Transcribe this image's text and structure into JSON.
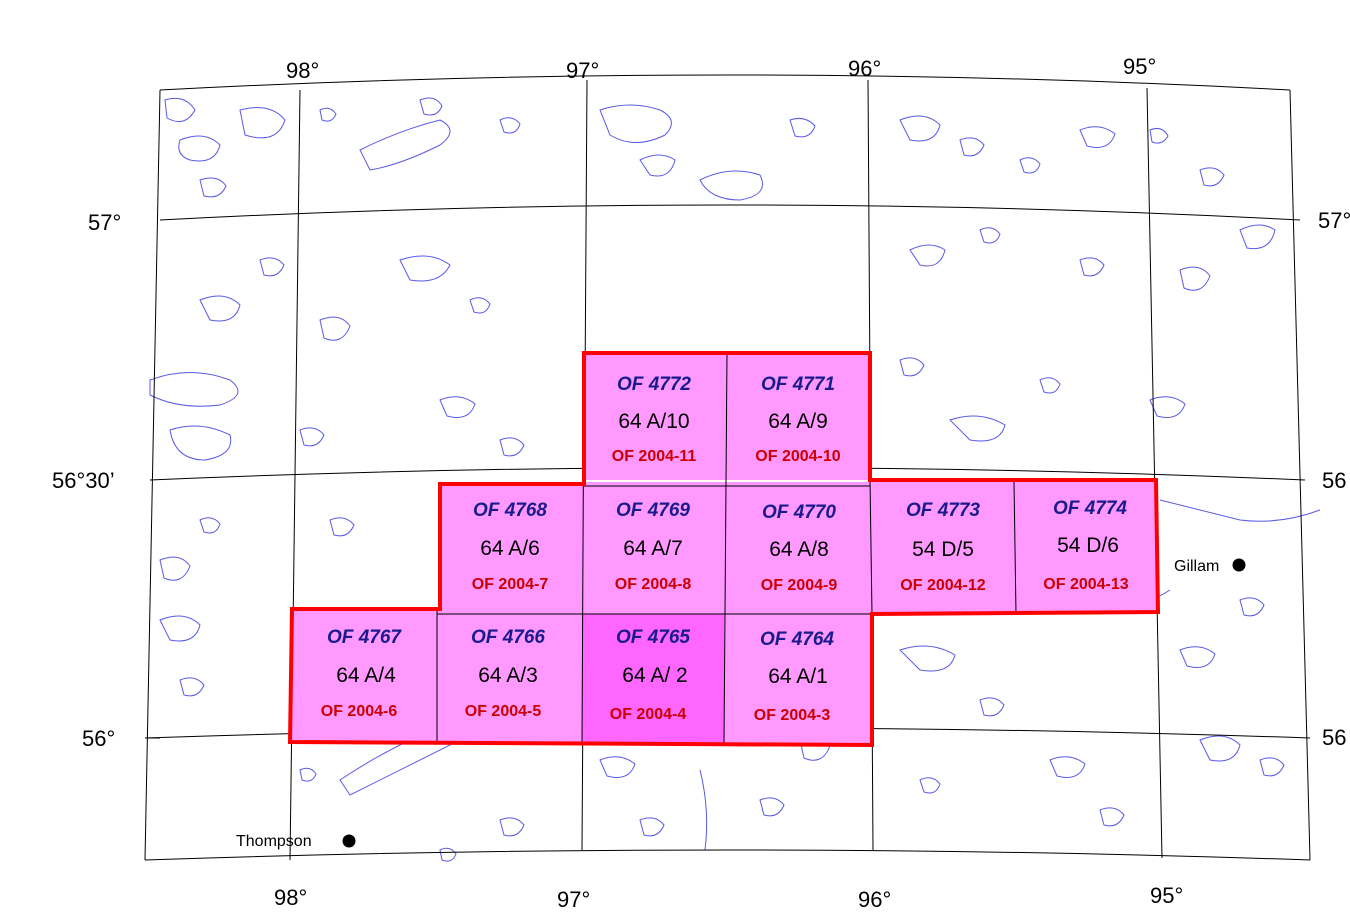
{
  "map": {
    "lon_labels_top": [
      "98°",
      "97°",
      "96°",
      "95°"
    ],
    "lon_labels_bottom": [
      "98°",
      "97°",
      "96°",
      "95°"
    ],
    "lat_labels_left": [
      "57°",
      "56°30’",
      "56°"
    ],
    "lat_labels_right": [
      "57°",
      "56",
      "56"
    ],
    "colors": {
      "tile_fill": "#ff99ff",
      "tile_highlight": "#ff66ff",
      "outline": "#ff0000",
      "lakes": "#5a5ae6",
      "grid": "#000000"
    }
  },
  "tiles": [
    {
      "of_a": "OF 4772",
      "nts": "64 A/10",
      "of_b": "OF 2004-11"
    },
    {
      "of_a": "OF 4771",
      "nts": "64 A/9",
      "of_b": "OF 2004-10"
    },
    {
      "of_a": "OF 4768",
      "nts": "64 A/6",
      "of_b": "OF 2004-7"
    },
    {
      "of_a": "OF 4769",
      "nts": "64 A/7",
      "of_b": "OF 2004-8"
    },
    {
      "of_a": "OF 4770",
      "nts": "64 A/8",
      "of_b": "OF 2004-9"
    },
    {
      "of_a": "OF 4773",
      "nts": "54 D/5",
      "of_b": "OF 2004-12"
    },
    {
      "of_a": "OF 4774",
      "nts": "54 D/6",
      "of_b": "OF 2004-13"
    },
    {
      "of_a": "OF 4767",
      "nts": "64 A/4",
      "of_b": "OF 2004-6"
    },
    {
      "of_a": "OF 4766",
      "nts": "64 A/3",
      "of_b": "OF 2004-5"
    },
    {
      "of_a": "OF 4765",
      "nts": "64 A/ 2",
      "of_b": "OF 2004-4"
    },
    {
      "of_a": "OF 4764",
      "nts": "64 A/1",
      "of_b": "OF 2004-3"
    }
  ],
  "towns": [
    {
      "name": "Thompson"
    },
    {
      "name": "Gillam"
    }
  ]
}
